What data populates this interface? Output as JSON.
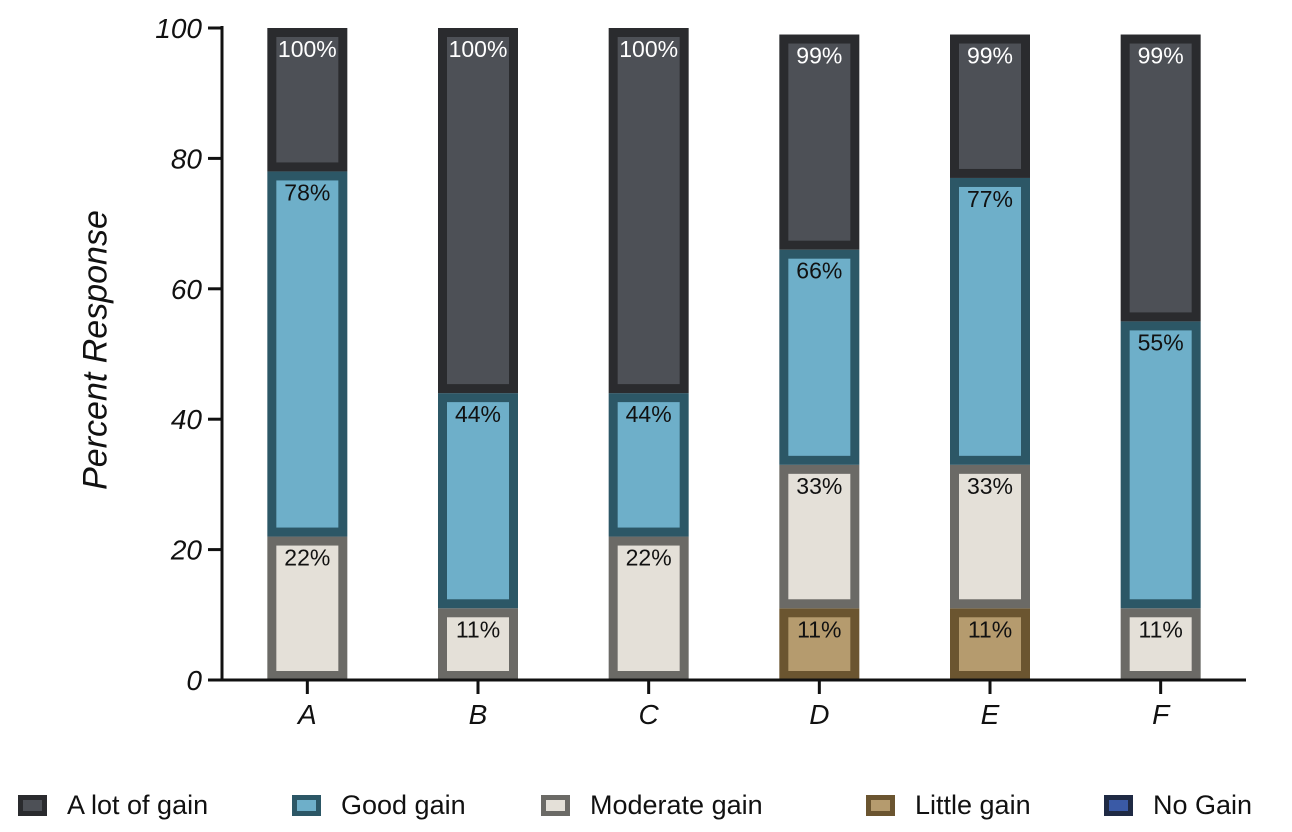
{
  "chart_data": {
    "type": "bar",
    "stacked": true,
    "ylabel": "Percent Response",
    "xlabel": "",
    "ylim": [
      0,
      100
    ],
    "yticks": [
      0,
      20,
      40,
      60,
      80,
      100
    ],
    "categories": [
      "A",
      "B",
      "C",
      "D",
      "E",
      "F"
    ],
    "series": [
      {
        "name": "No Gain",
        "cumulative": [
          0,
          0,
          0,
          0,
          0,
          0
        ],
        "fill": "#3a5aa6",
        "stroke": "#1f2a44"
      },
      {
        "name": "Little gain",
        "cumulative": [
          0,
          0,
          0,
          11,
          11,
          0
        ],
        "fill": "#b59b6e",
        "stroke": "#6b5530"
      },
      {
        "name": "Moderate gain",
        "cumulative": [
          22,
          11,
          22,
          33,
          33,
          11
        ],
        "fill": "#e4e0d8",
        "stroke": "#6b6a66"
      },
      {
        "name": "Good gain",
        "cumulative": [
          78,
          44,
          44,
          66,
          77,
          55
        ],
        "fill": "#6eafc9",
        "stroke": "#2c5766"
      },
      {
        "name": "A lot of gain",
        "cumulative": [
          100,
          100,
          100,
          99,
          99,
          99
        ],
        "fill": "#4d5056",
        "stroke": "#2a2b2e"
      }
    ],
    "data_labels": [
      [
        "",
        "",
        "22%",
        "78%",
        "100%"
      ],
      [
        "",
        "",
        "11%",
        "44%",
        "100%"
      ],
      [
        "",
        "",
        "22%",
        "44%",
        "100%"
      ],
      [
        "",
        "11%",
        "33%",
        "66%",
        "99%"
      ],
      [
        "",
        "11%",
        "33%",
        "77%",
        "99%"
      ],
      [
        "",
        "",
        "11%",
        "55%",
        "99%"
      ]
    ],
    "legend_placement": "bottom",
    "legend": [
      "A lot of gain",
      "Good gain",
      "Moderate gain",
      "Little gain",
      "No Gain"
    ],
    "grid": false
  }
}
